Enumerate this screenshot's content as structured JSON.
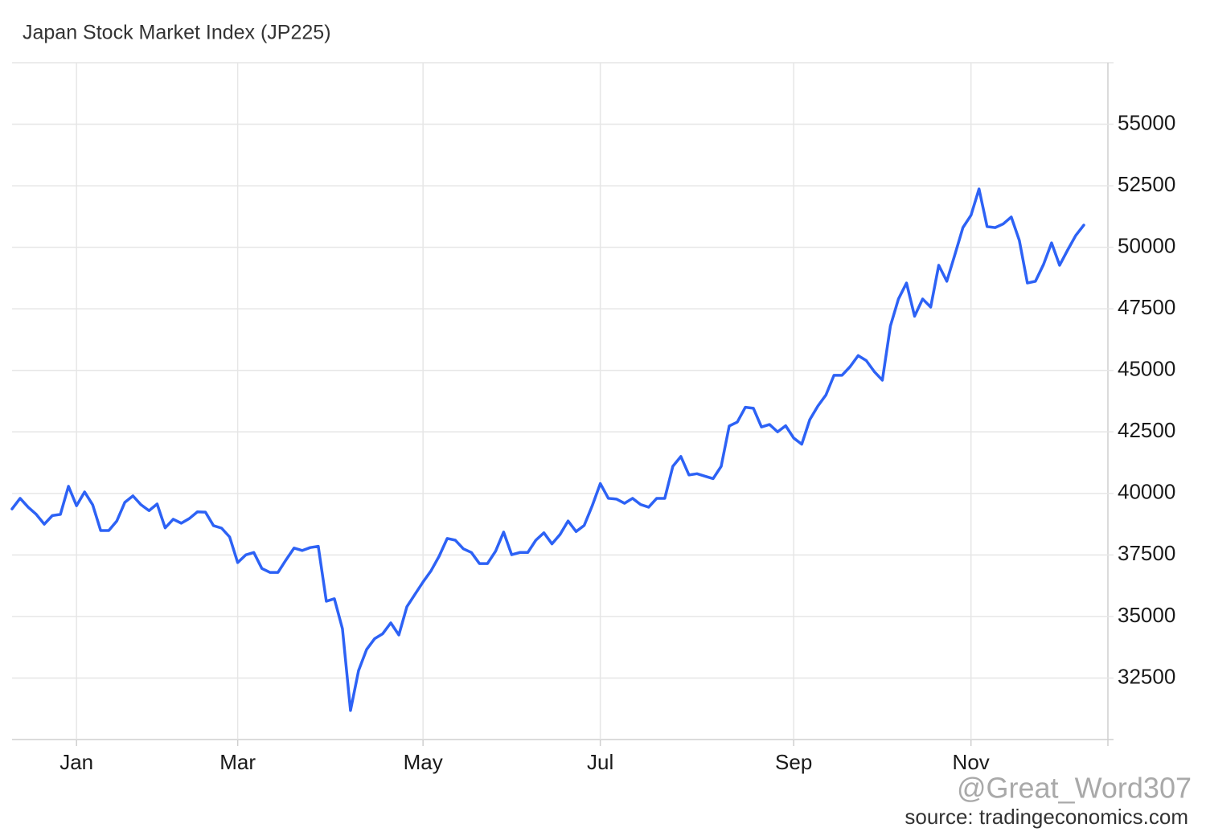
{
  "chart_data": {
    "type": "line",
    "title": "Japan Stock Market Index (JP225)",
    "watermark": "@Great_Word307",
    "source": "source: tradingeconomics.com",
    "categories": [
      null,
      null,
      null,
      null,
      null,
      null,
      null,
      null,
      "Jan",
      null,
      null,
      null,
      null,
      null,
      null,
      null,
      null,
      null,
      null,
      null,
      null,
      null,
      null,
      null,
      null,
      null,
      null,
      null,
      "Mar",
      null,
      null,
      null,
      null,
      null,
      null,
      null,
      null,
      null,
      null,
      null,
      null,
      null,
      null,
      null,
      null,
      null,
      null,
      null,
      null,
      null,
      null,
      "May",
      null,
      null,
      null,
      null,
      null,
      null,
      null,
      null,
      null,
      null,
      null,
      null,
      null,
      null,
      null,
      null,
      null,
      null,
      null,
      null,
      null,
      "Jul",
      null,
      null,
      null,
      null,
      null,
      null,
      null,
      null,
      null,
      null,
      null,
      null,
      null,
      null,
      null,
      null,
      null,
      null,
      null,
      null,
      null,
      null,
      null,
      "Sep",
      null,
      null,
      null,
      null,
      null,
      null,
      null,
      null,
      null,
      null,
      null,
      null,
      null,
      null,
      null,
      null,
      null,
      null,
      null,
      null,
      null,
      "Nov",
      null,
      null,
      null,
      null,
      null,
      null,
      null,
      null,
      null,
      null,
      null,
      null,
      null,
      null
    ],
    "series": [
      {
        "name": "JP225",
        "color": "#2d62f5",
        "values": [
          39370,
          39800,
          39440,
          39150,
          38750,
          39100,
          39150,
          40290,
          39500,
          40060,
          39540,
          38490,
          38490,
          38880,
          39640,
          39900,
          39540,
          39300,
          39570,
          38600,
          38950,
          38790,
          38980,
          39250,
          39240,
          38690,
          38590,
          38230,
          37190,
          37500,
          37600,
          36950,
          36790,
          36790,
          37300,
          37780,
          37680,
          37800,
          37850,
          35620,
          35720,
          34500,
          31180,
          32800,
          33660,
          34100,
          34300,
          34740,
          34250,
          35400,
          35900,
          36400,
          36860,
          37450,
          38170,
          38100,
          37750,
          37600,
          37150,
          37150,
          37650,
          38430,
          37510,
          37600,
          37600,
          38100,
          38400,
          37950,
          38330,
          38880,
          38450,
          38700,
          39500,
          40400,
          39800,
          39770,
          39600,
          39800,
          39550,
          39440,
          39800,
          39800,
          41100,
          41500,
          40750,
          40800,
          40700,
          40600,
          41100,
          42740,
          42900,
          43500,
          43460,
          42700,
          42800,
          42500,
          42750,
          42250,
          42000,
          43000,
          43550,
          44000,
          44800,
          44800,
          45150,
          45600,
          45400,
          44950,
          44600,
          46800,
          47900,
          48550,
          47200,
          47900,
          47570,
          49270,
          48620,
          49700,
          50800,
          51300,
          52370,
          50840,
          50800,
          50950,
          51230,
          50280,
          48550,
          48620,
          49300,
          50180,
          49270,
          49890,
          50480,
          50900
        ]
      }
    ],
    "ylim": [
      30000,
      57500
    ],
    "yticks": [
      32500,
      35000,
      37500,
      40000,
      42500,
      45000,
      47500,
      50000,
      52500,
      55000
    ],
    "grid": true
  }
}
